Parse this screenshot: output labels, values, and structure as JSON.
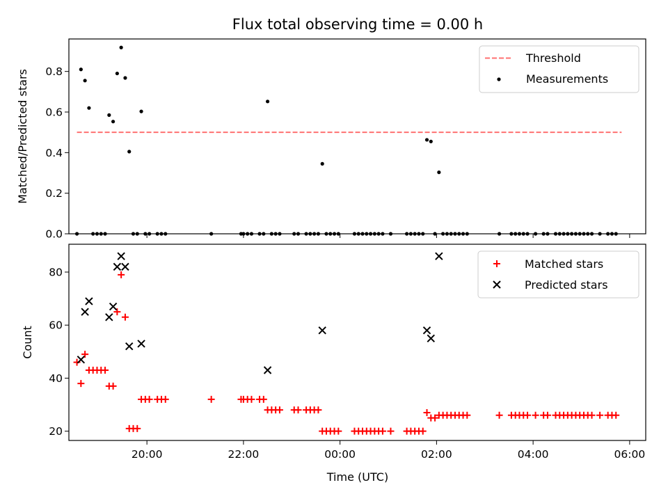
{
  "chart_data": [
    {
      "type": "scatter",
      "title": "Flux total observing time = 0.00 h",
      "xlabel": "",
      "ylabel": "Matched/Predicted stars",
      "ylim": [
        0.0,
        0.96
      ],
      "xlim": [
        "18:23",
        "06:20"
      ],
      "yticks": [
        "0.0",
        "0.2",
        "0.4",
        "0.6",
        "0.8"
      ],
      "legend_position": "upper right",
      "grid": false,
      "series": [
        {
          "name": "Threshold",
          "style": "dashed-line",
          "color": "#ff7070",
          "points": [
            [
              "18:33",
              0.5
            ],
            [
              "05:50",
              0.5
            ]
          ]
        },
        {
          "name": "Measurements",
          "style": "dot",
          "color": "#000000",
          "points": [
            [
              "18:33",
              0.0
            ],
            [
              "18:38",
              0.81
            ],
            [
              "18:43",
              0.755
            ],
            [
              "18:48",
              0.62
            ],
            [
              "18:53",
              0.0
            ],
            [
              "18:58",
              0.0
            ],
            [
              "19:03",
              0.0
            ],
            [
              "19:08",
              0.0
            ],
            [
              "19:13",
              0.585
            ],
            [
              "19:18",
              0.553
            ],
            [
              "19:23",
              0.79
            ],
            [
              "19:28",
              0.918
            ],
            [
              "19:33",
              0.768
            ],
            [
              "19:38",
              0.405
            ],
            [
              "19:43",
              0.0
            ],
            [
              "19:48",
              0.0
            ],
            [
              "19:53",
              0.603
            ],
            [
              "19:58",
              0.0
            ],
            [
              "20:03",
              0.0
            ],
            [
              "20:13",
              0.0
            ],
            [
              "20:18",
              0.0
            ],
            [
              "20:23",
              0.0
            ],
            [
              "21:20",
              0.0
            ],
            [
              "21:57",
              0.0
            ],
            [
              "22:00",
              0.0
            ],
            [
              "22:05",
              0.0
            ],
            [
              "22:10",
              0.0
            ],
            [
              "22:20",
              0.0
            ],
            [
              "22:25",
              0.0
            ],
            [
              "22:30",
              0.652
            ],
            [
              "22:35",
              0.0
            ],
            [
              "22:40",
              0.0
            ],
            [
              "22:45",
              0.0
            ],
            [
              "23:03",
              0.0
            ],
            [
              "23:08",
              0.0
            ],
            [
              "23:18",
              0.0
            ],
            [
              "23:23",
              0.0
            ],
            [
              "23:28",
              0.0
            ],
            [
              "23:33",
              0.0
            ],
            [
              "23:38",
              0.345
            ],
            [
              "23:43",
              0.0
            ],
            [
              "23:48",
              0.0
            ],
            [
              "23:53",
              0.0
            ],
            [
              "23:58",
              0.0
            ],
            [
              "00:18",
              0.0
            ],
            [
              "00:23",
              0.0
            ],
            [
              "00:28",
              0.0
            ],
            [
              "00:33",
              0.0
            ],
            [
              "00:38",
              0.0
            ],
            [
              "00:43",
              0.0
            ],
            [
              "00:48",
              0.0
            ],
            [
              "00:53",
              0.0
            ],
            [
              "01:03",
              0.0
            ],
            [
              "01:23",
              0.0
            ],
            [
              "01:28",
              0.0
            ],
            [
              "01:33",
              0.0
            ],
            [
              "01:38",
              0.0
            ],
            [
              "01:43",
              0.0
            ],
            [
              "01:48",
              0.463
            ],
            [
              "01:53",
              0.455
            ],
            [
              "01:58",
              0.0
            ],
            [
              "02:03",
              0.303
            ],
            [
              "02:08",
              0.0
            ],
            [
              "02:13",
              0.0
            ],
            [
              "02:18",
              0.0
            ],
            [
              "02:23",
              0.0
            ],
            [
              "02:28",
              0.0
            ],
            [
              "02:33",
              0.0
            ],
            [
              "02:38",
              0.0
            ],
            [
              "03:18",
              0.0
            ],
            [
              "03:33",
              0.0
            ],
            [
              "03:38",
              0.0
            ],
            [
              "03:43",
              0.0
            ],
            [
              "03:48",
              0.0
            ],
            [
              "03:53",
              0.0
            ],
            [
              "04:03",
              0.0
            ],
            [
              "04:13",
              0.0
            ],
            [
              "04:18",
              0.0
            ],
            [
              "04:28",
              0.0
            ],
            [
              "04:33",
              0.0
            ],
            [
              "04:38",
              0.0
            ],
            [
              "04:43",
              0.0
            ],
            [
              "04:48",
              0.0
            ],
            [
              "04:53",
              0.0
            ],
            [
              "04:58",
              0.0
            ],
            [
              "05:03",
              0.0
            ],
            [
              "05:08",
              0.0
            ],
            [
              "05:13",
              0.0
            ],
            [
              "05:23",
              0.0
            ],
            [
              "05:33",
              0.0
            ],
            [
              "05:38",
              0.0
            ],
            [
              "05:43",
              0.0
            ]
          ]
        }
      ]
    },
    {
      "type": "scatter",
      "title": "",
      "xlabel": "Time (UTC)",
      "ylabel": "Count",
      "ylim": [
        16.5,
        90.5
      ],
      "xlim": [
        "18:23",
        "06:20"
      ],
      "xticks": [
        "20:00",
        "22:00",
        "00:00",
        "02:00",
        "04:00",
        "06:00"
      ],
      "yticks": [
        "20",
        "40",
        "60",
        "80"
      ],
      "legend_position": "upper right",
      "grid": false,
      "series": [
        {
          "name": "Matched stars",
          "marker": "plus",
          "color": "#ff0000",
          "points": [
            [
              "18:33",
              46
            ],
            [
              "18:38",
              38
            ],
            [
              "18:43",
              49
            ],
            [
              "18:48",
              43
            ],
            [
              "18:53",
              43
            ],
            [
              "18:58",
              43
            ],
            [
              "19:03",
              43
            ],
            [
              "19:08",
              43
            ],
            [
              "19:13",
              37
            ],
            [
              "19:18",
              37
            ],
            [
              "19:23",
              65
            ],
            [
              "19:28",
              79
            ],
            [
              "19:33",
              63
            ],
            [
              "19:38",
              21
            ],
            [
              "19:43",
              21
            ],
            [
              "19:48",
              21
            ],
            [
              "19:53",
              32
            ],
            [
              "19:58",
              32
            ],
            [
              "20:03",
              32
            ],
            [
              "20:13",
              32
            ],
            [
              "20:18",
              32
            ],
            [
              "20:23",
              32
            ],
            [
              "21:20",
              32
            ],
            [
              "21:57",
              32
            ],
            [
              "22:00",
              32
            ],
            [
              "22:05",
              32
            ],
            [
              "22:10",
              32
            ],
            [
              "22:20",
              32
            ],
            [
              "22:25",
              32
            ],
            [
              "22:30",
              28
            ],
            [
              "22:35",
              28
            ],
            [
              "22:40",
              28
            ],
            [
              "22:45",
              28
            ],
            [
              "23:03",
              28
            ],
            [
              "23:08",
              28
            ],
            [
              "23:18",
              28
            ],
            [
              "23:23",
              28
            ],
            [
              "23:28",
              28
            ],
            [
              "23:33",
              28
            ],
            [
              "23:38",
              20
            ],
            [
              "23:43",
              20
            ],
            [
              "23:48",
              20
            ],
            [
              "23:53",
              20
            ],
            [
              "23:58",
              20
            ],
            [
              "00:18",
              20
            ],
            [
              "00:23",
              20
            ],
            [
              "00:28",
              20
            ],
            [
              "00:33",
              20
            ],
            [
              "00:38",
              20
            ],
            [
              "00:43",
              20
            ],
            [
              "00:48",
              20
            ],
            [
              "00:53",
              20
            ],
            [
              "01:03",
              20
            ],
            [
              "01:23",
              20
            ],
            [
              "01:28",
              20
            ],
            [
              "01:33",
              20
            ],
            [
              "01:38",
              20
            ],
            [
              "01:43",
              20
            ],
            [
              "01:48",
              27
            ],
            [
              "01:53",
              25
            ],
            [
              "01:58",
              25
            ],
            [
              "02:03",
              26
            ],
            [
              "02:08",
              26
            ],
            [
              "02:13",
              26
            ],
            [
              "02:18",
              26
            ],
            [
              "02:23",
              26
            ],
            [
              "02:28",
              26
            ],
            [
              "02:33",
              26
            ],
            [
              "02:38",
              26
            ],
            [
              "03:18",
              26
            ],
            [
              "03:33",
              26
            ],
            [
              "03:38",
              26
            ],
            [
              "03:43",
              26
            ],
            [
              "03:48",
              26
            ],
            [
              "03:53",
              26
            ],
            [
              "04:03",
              26
            ],
            [
              "04:13",
              26
            ],
            [
              "04:18",
              26
            ],
            [
              "04:28",
              26
            ],
            [
              "04:33",
              26
            ],
            [
              "04:38",
              26
            ],
            [
              "04:43",
              26
            ],
            [
              "04:48",
              26
            ],
            [
              "04:53",
              26
            ],
            [
              "04:58",
              26
            ],
            [
              "05:03",
              26
            ],
            [
              "05:08",
              26
            ],
            [
              "05:13",
              26
            ],
            [
              "05:23",
              26
            ],
            [
              "05:33",
              26
            ],
            [
              "05:38",
              26
            ],
            [
              "05:43",
              26
            ]
          ]
        },
        {
          "name": "Predicted stars",
          "marker": "x",
          "color": "#000000",
          "points": [
            [
              "18:38",
              47
            ],
            [
              "18:43",
              65
            ],
            [
              "18:48",
              69
            ],
            [
              "19:13",
              63
            ],
            [
              "19:18",
              67
            ],
            [
              "19:23",
              82
            ],
            [
              "19:28",
              86
            ],
            [
              "19:33",
              82
            ],
            [
              "19:38",
              52
            ],
            [
              "19:53",
              53
            ],
            [
              "22:30",
              43
            ],
            [
              "23:38",
              58
            ],
            [
              "01:48",
              58
            ],
            [
              "01:53",
              55
            ],
            [
              "02:03",
              86
            ]
          ]
        }
      ]
    }
  ]
}
